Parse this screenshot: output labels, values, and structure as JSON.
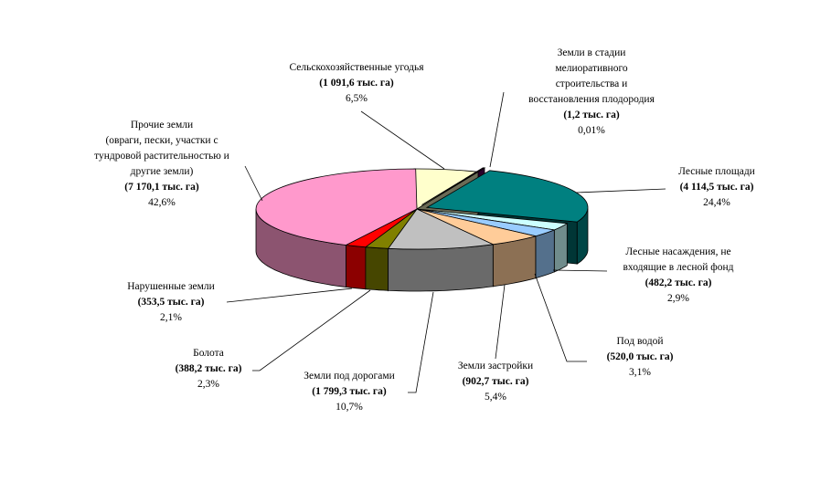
{
  "chart_data": {
    "type": "pie",
    "title": "",
    "slices": [
      {
        "name": "Сельскохозяйственные угодья",
        "value_text": "(1 091,6 тыс. га)",
        "value": 1091.6,
        "percent_text": "6,5%",
        "percent": 6.5,
        "color": "#ffffcc"
      },
      {
        "name": "Земли в стадии мелиоративного строительства и восстановления плодородия",
        "value_text": "(1,2 тыс. га)",
        "value": 1.2,
        "percent_text": "0,01%",
        "percent": 0.01,
        "color": "#660066"
      },
      {
        "name": "Лесные площади",
        "value_text": "(4 114,5 тыс. га)",
        "value": 4114.5,
        "percent_text": "24,4%",
        "percent": 24.4,
        "color": "#008080"
      },
      {
        "name": "Лесные насаждения, не входящие в лесной фонд",
        "value_text": "(482,2 тыс. га)",
        "value": 482.2,
        "percent_text": "2,9%",
        "percent": 2.9,
        "color": "#ccffff"
      },
      {
        "name": "Под водой",
        "value_text": "(520,0 тыс. га)",
        "value": 520.0,
        "percent_text": "3,1%",
        "percent": 3.1,
        "color": "#99ccff"
      },
      {
        "name": "Земли застройки",
        "value_text": "(902,7 тыс. га)",
        "value": 902.7,
        "percent_text": "5,4%",
        "percent": 5.4,
        "color": "#ffcc99"
      },
      {
        "name": "Земли под дорогами",
        "value_text": "(1 799,3 тыс. га)",
        "value": 1799.3,
        "percent_text": "10,7%",
        "percent": 10.7,
        "color": "#c0c0c0"
      },
      {
        "name": "Болота",
        "value_text": "(388,2 тыс. га)",
        "value": 388.2,
        "percent_text": "2,3%",
        "percent": 2.3,
        "color": "#808000"
      },
      {
        "name": "Нарушенные земли",
        "value_text": "(353,5 тыс. га)",
        "value": 353.5,
        "percent_text": "2,1%",
        "percent": 2.1,
        "color": "#ff0000"
      },
      {
        "name": "Прочие земли (овраги, пески, участки с тундровой растительностью и другие земли)",
        "value_text": "(7 170,1 тыс. га)",
        "value": 7170.1,
        "percent_text": "42,6%",
        "percent": 42.6,
        "color": "#ff99cc"
      }
    ]
  },
  "labels": {
    "agri": {
      "lines": [
        "Сельскохозяйственные угодья"
      ],
      "value": "(1 091,6 тыс. га)",
      "pct": "6,5%"
    },
    "melio": {
      "lines": [
        "Земли в стадии",
        "мелиоративного",
        "строительства и",
        "восстановления плодородия"
      ],
      "value": "(1,2 тыс. га)",
      "pct": "0,01%"
    },
    "forest": {
      "lines": [
        "Лесные площади"
      ],
      "value": "(4 114,5 тыс. га)",
      "pct": "24,4%"
    },
    "planting": {
      "lines": [
        "Лесные насаждения, не",
        "входящие в лесной фонд"
      ],
      "value": "(482,2 тыс. га)",
      "pct": "2,9%"
    },
    "water": {
      "lines": [
        "Под водой"
      ],
      "value": "(520,0 тыс. га)",
      "pct": "3,1%"
    },
    "built": {
      "lines": [
        "Земли застройки"
      ],
      "value": "(902,7 тыс. га)",
      "pct": "5,4%"
    },
    "roads": {
      "lines": [
        "Земли под дорогами"
      ],
      "value": "(1 799,3 тыс. га)",
      "pct": "10,7%"
    },
    "swamps": {
      "lines": [
        "Болота"
      ],
      "value": "(388,2 тыс. га)",
      "pct": "2,3%"
    },
    "disturbed": {
      "lines": [
        "Нарушенные земли"
      ],
      "value": "(353,5 тыс. га)",
      "pct": "2,1%"
    },
    "other": {
      "lines": [
        "Прочие земли",
        "(овраги, пески, участки с",
        "тундровой растительностью и",
        "другие земли)"
      ],
      "value": "(7 170,1 тыс. га)",
      "pct": "42,6%"
    }
  }
}
